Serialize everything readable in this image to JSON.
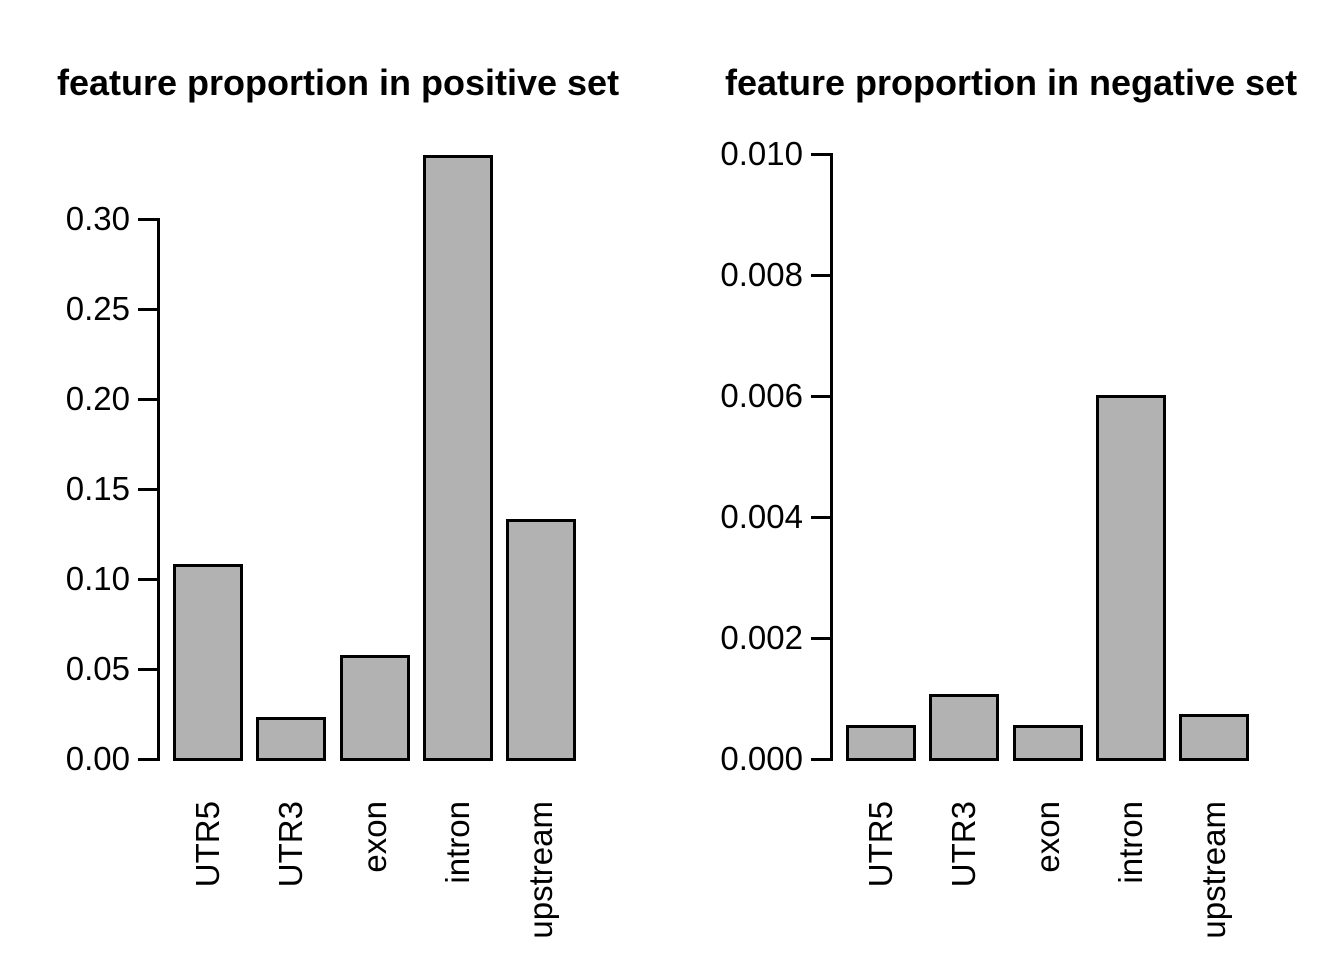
{
  "figure": {
    "background": "#ffffff",
    "bar_fill": "#b2b2b2",
    "bar_border": "#000000",
    "text_color": "#000000"
  },
  "chart_data": [
    {
      "type": "bar",
      "title": "feature proportion in positive set",
      "categories": [
        "UTR5",
        "UTR3",
        "exon",
        "intron",
        "upstream"
      ],
      "values": [
        0.108,
        0.023,
        0.057,
        0.335,
        0.133
      ],
      "xlabel": "",
      "ylabel": "",
      "ylim": [
        0,
        0.335
      ],
      "yticks": {
        "values": [
          0,
          0.05,
          0.1,
          0.15,
          0.2,
          0.25,
          0.3
        ],
        "labels": [
          "0.00",
          "0.05",
          "0.10",
          "0.15",
          "0.20",
          "0.25",
          "0.30"
        ]
      },
      "grid": false,
      "legend": "none",
      "bar_color": "#b2b2b2"
    },
    {
      "type": "bar",
      "title": "feature proportion in negative set",
      "categories": [
        "UTR5",
        "UTR3",
        "exon",
        "intron",
        "upstream"
      ],
      "values": [
        0.00055,
        0.00105,
        0.00055,
        0.006,
        0.00072
      ],
      "xlabel": "",
      "ylabel": "",
      "ylim": [
        0,
        0.01
      ],
      "yticks": {
        "values": [
          0,
          0.002,
          0.004,
          0.006,
          0.008,
          0.01
        ],
        "labels": [
          "0.000",
          "0.002",
          "0.004",
          "0.006",
          "0.008",
          "0.010"
        ]
      },
      "grid": false,
      "legend": "none",
      "bar_color": "#b2b2b2"
    }
  ]
}
